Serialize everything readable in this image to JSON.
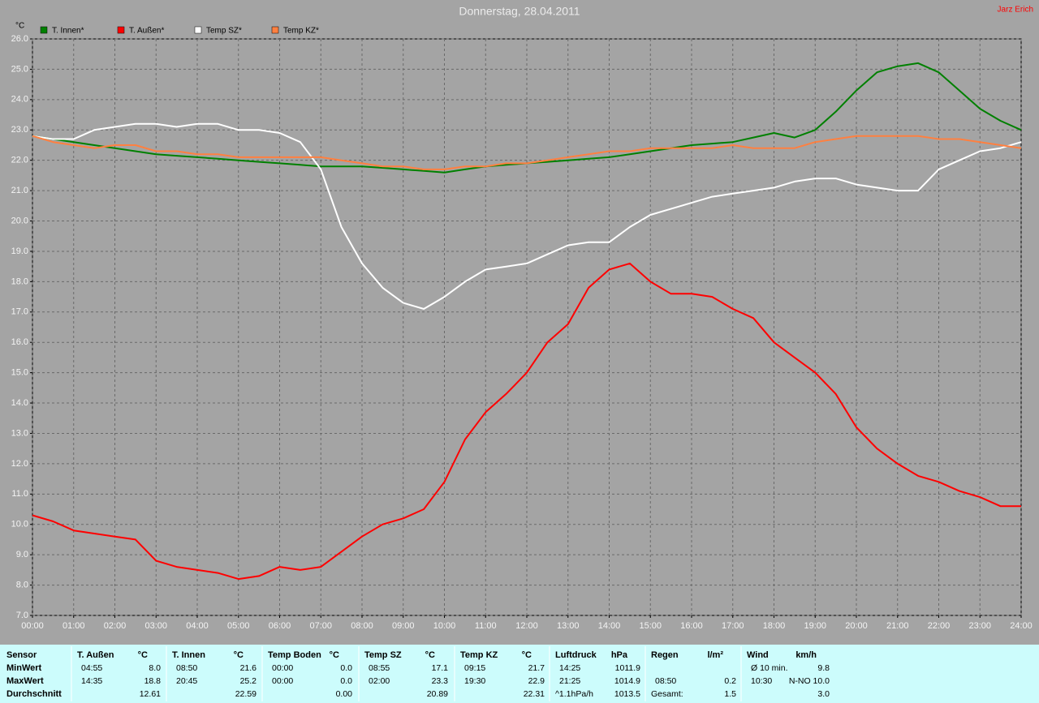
{
  "chart_data": {
    "type": "line",
    "title": "Donnerstag, 28.04.2011",
    "author": "Jarz Erich",
    "y_label": "°C",
    "x": [
      0,
      0.5,
      1,
      1.5,
      2,
      2.5,
      3,
      3.5,
      4,
      4.5,
      5,
      5.5,
      6,
      6.5,
      7,
      7.5,
      8,
      8.5,
      9,
      9.5,
      10,
      10.5,
      11,
      11.5,
      12,
      12.5,
      13,
      13.5,
      14,
      14.5,
      15,
      15.5,
      16,
      16.5,
      17,
      17.5,
      18,
      18.5,
      19,
      19.5,
      20,
      20.5,
      21,
      21.5,
      22,
      22.5,
      23,
      23.5,
      24
    ],
    "series": [
      {
        "name": "T. Innen*",
        "color": "#008000",
        "values": [
          22.8,
          22.7,
          22.6,
          22.5,
          22.4,
          22.3,
          22.2,
          22.15,
          22.1,
          22.05,
          22.0,
          21.95,
          21.9,
          21.85,
          21.8,
          21.8,
          21.8,
          21.75,
          21.7,
          21.65,
          21.6,
          21.7,
          21.8,
          21.85,
          21.9,
          21.95,
          22.0,
          22.05,
          22.1,
          22.2,
          22.3,
          22.4,
          22.5,
          22.55,
          22.6,
          22.75,
          22.9,
          22.75,
          23.0,
          23.6,
          24.3,
          24.9,
          25.1,
          25.2,
          24.9,
          24.3,
          23.7,
          23.3,
          23.0
        ]
      },
      {
        "name": "T. Außen*",
        "color": "#ff0000",
        "values": [
          10.3,
          10.1,
          9.8,
          9.7,
          9.6,
          9.5,
          8.8,
          8.6,
          8.5,
          8.4,
          8.2,
          8.3,
          8.6,
          8.5,
          8.6,
          9.1,
          9.6,
          10.0,
          10.2,
          10.5,
          11.4,
          12.8,
          13.7,
          14.3,
          15.0,
          16.0,
          16.6,
          17.8,
          18.4,
          18.6,
          18.0,
          17.6,
          17.6,
          17.5,
          17.1,
          16.8,
          16.0,
          15.5,
          15.0,
          14.3,
          13.2,
          12.5,
          12.0,
          11.6,
          11.4,
          11.1,
          10.9,
          10.6,
          10.6
        ]
      },
      {
        "name": "Temp SZ*",
        "color": "#ffffff",
        "values": [
          22.8,
          22.7,
          22.7,
          23.0,
          23.1,
          23.2,
          23.2,
          23.1,
          23.2,
          23.2,
          23.0,
          23.0,
          22.9,
          22.6,
          21.7,
          19.8,
          18.6,
          17.8,
          17.3,
          17.1,
          17.5,
          18.0,
          18.4,
          18.5,
          18.6,
          18.9,
          19.2,
          19.3,
          19.3,
          19.8,
          20.2,
          20.4,
          20.6,
          20.8,
          20.9,
          21.0,
          21.1,
          21.3,
          21.4,
          21.4,
          21.2,
          21.1,
          21.0,
          21.0,
          21.7,
          22.0,
          22.3,
          22.4,
          22.6
        ]
      },
      {
        "name": "Temp KZ*",
        "color": "#ff8040",
        "values": [
          22.8,
          22.6,
          22.5,
          22.4,
          22.5,
          22.5,
          22.3,
          22.3,
          22.2,
          22.2,
          22.1,
          22.1,
          22.1,
          22.1,
          22.1,
          22.0,
          21.9,
          21.8,
          21.8,
          21.7,
          21.7,
          21.8,
          21.8,
          21.9,
          21.9,
          22.0,
          22.1,
          22.2,
          22.3,
          22.3,
          22.4,
          22.4,
          22.4,
          22.4,
          22.5,
          22.4,
          22.4,
          22.4,
          22.6,
          22.7,
          22.8,
          22.8,
          22.8,
          22.8,
          22.7,
          22.7,
          22.6,
          22.5,
          22.4
        ]
      }
    ],
    "xlim": [
      0,
      24
    ],
    "ylim": [
      7,
      26
    ],
    "xticks": [
      {
        "value": 0,
        "label": "00:00"
      },
      {
        "value": 1,
        "label": "01:00"
      },
      {
        "value": 2,
        "label": "02:00"
      },
      {
        "value": 3,
        "label": "03:00"
      },
      {
        "value": 4,
        "label": "04:00"
      },
      {
        "value": 5,
        "label": "05:00"
      },
      {
        "value": 6,
        "label": "06:00"
      },
      {
        "value": 7,
        "label": "07:00"
      },
      {
        "value": 8,
        "label": "08:00"
      },
      {
        "value": 9,
        "label": "09:00"
      },
      {
        "value": 10,
        "label": "10:00"
      },
      {
        "value": 11,
        "label": "11:00"
      },
      {
        "value": 12,
        "label": "12:00"
      },
      {
        "value": 13,
        "label": "13:00"
      },
      {
        "value": 14,
        "label": "14:00"
      },
      {
        "value": 15,
        "label": "15:00"
      },
      {
        "value": 16,
        "label": "16:00"
      },
      {
        "value": 17,
        "label": "17:00"
      },
      {
        "value": 18,
        "label": "18:00"
      },
      {
        "value": 19,
        "label": "19:00"
      },
      {
        "value": 20,
        "label": "20:00"
      },
      {
        "value": 21,
        "label": "21:00"
      },
      {
        "value": 22,
        "label": "22:00"
      },
      {
        "value": 23,
        "label": "23:00"
      },
      {
        "value": 24,
        "label": "24:00"
      }
    ],
    "yticks": [
      {
        "value": 7,
        "label": "7.0"
      },
      {
        "value": 8,
        "label": "8.0"
      },
      {
        "value": 9,
        "label": "9.0"
      },
      {
        "value": 10,
        "label": "10.0"
      },
      {
        "value": 11,
        "label": "11.0"
      },
      {
        "value": 12,
        "label": "12.0"
      },
      {
        "value": 13,
        "label": "13.0"
      },
      {
        "value": 14,
        "label": "14.0"
      },
      {
        "value": 15,
        "label": "15.0"
      },
      {
        "value": 16,
        "label": "16.0"
      },
      {
        "value": 17,
        "label": "17.0"
      },
      {
        "value": 18,
        "label": "18.0"
      },
      {
        "value": 19,
        "label": "19.0"
      },
      {
        "value": 20,
        "label": "20.0"
      },
      {
        "value": 21,
        "label": "21.0"
      },
      {
        "value": 22,
        "label": "22.0"
      },
      {
        "value": 23,
        "label": "23.0"
      },
      {
        "value": 24,
        "label": "24.0"
      },
      {
        "value": 25,
        "label": "25.0"
      },
      {
        "value": 26,
        "label": "26.0"
      }
    ],
    "grid": true
  },
  "table": {
    "row_labels": [
      "Sensor",
      "MinWert",
      "MaxWert",
      "Durchschnitt"
    ],
    "columns": [
      {
        "name": "T. Außen",
        "unit": "°C",
        "cells": [
          {
            "time": "04:55",
            "value": "8.0"
          },
          {
            "time": "14:35",
            "value": "18.8"
          },
          {
            "value": "12.61"
          }
        ]
      },
      {
        "name": "T. Innen",
        "unit": "°C",
        "cells": [
          {
            "time": "08:50",
            "value": "21.6"
          },
          {
            "time": "20:45",
            "value": "25.2"
          },
          {
            "value": "22.59"
          }
        ]
      },
      {
        "name": "Temp Boden",
        "unit": "°C",
        "cells": [
          {
            "time": "00:00",
            "value": "0.0"
          },
          {
            "time": "00:00",
            "value": "0.0"
          },
          {
            "value": "0.00"
          }
        ]
      },
      {
        "name": "Temp SZ",
        "unit": "°C",
        "cells": [
          {
            "time": "08:55",
            "value": "17.1"
          },
          {
            "time": "02:00",
            "value": "23.3"
          },
          {
            "value": "20.89"
          }
        ]
      },
      {
        "name": "Temp KZ",
        "unit": "°C",
        "cells": [
          {
            "time": "09:15",
            "value": "21.7"
          },
          {
            "time": "19:30",
            "value": "22.9"
          },
          {
            "value": "22.31"
          }
        ]
      },
      {
        "name": "Luftdruck",
        "unit": "hPa",
        "cells": [
          {
            "time": "14:25",
            "value": "1011.9"
          },
          {
            "time": "21:25",
            "value": "1014.9"
          },
          {
            "time": "^1.1hPa/h",
            "value": "1013.5"
          }
        ]
      },
      {
        "name": "Regen",
        "unit": "l/m²",
        "cells": [
          null,
          {
            "time": "08:50",
            "value": "0.2"
          },
          {
            "time": "Gesamt:",
            "value": "1.5"
          }
        ]
      },
      {
        "name": "Wind",
        "unit": "km/h",
        "cells": [
          {
            "time": "Ø 10 min.",
            "value": "9.8"
          },
          {
            "time": "10:30",
            "value": "N-NO 10.0"
          },
          {
            "value": "3.0"
          }
        ]
      }
    ]
  }
}
